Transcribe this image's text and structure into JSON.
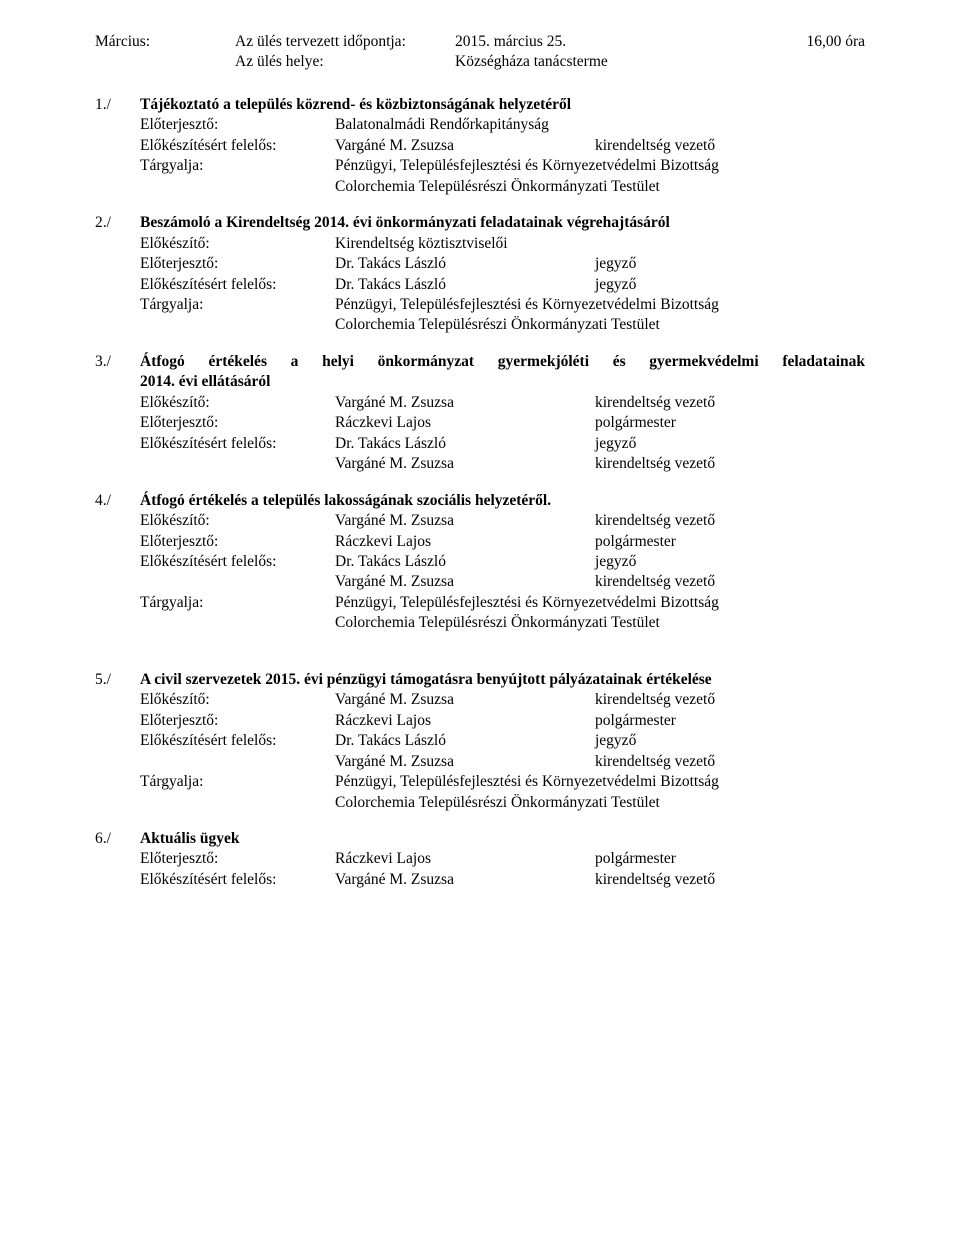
{
  "header": {
    "month": "Március:",
    "row1_label": "Az ülés tervezett időpontja:",
    "row1_value": "2015. március 25.",
    "row1_time": "16,00 óra",
    "row2_label": "Az ülés helye:",
    "row2_value": "Községháza tanácsterme"
  },
  "agenda": [
    {
      "num": "1./",
      "title": "Tájékoztató a település közrend- és közbiztonságának helyzetéről",
      "justify": false,
      "lines": [
        {
          "label": "Előterjesztő:",
          "value": "Balatonalmádi Rendőrkapitányság",
          "role": ""
        },
        {
          "label": "Előkészítésért felelős:",
          "value": "Vargáné M. Zsuzsa",
          "role": "kirendeltség vezető"
        },
        {
          "label": "Tárgyalja:",
          "full": "Pénzügyi, Településfejlesztési és Környezetvédelmi Bizottság"
        },
        {
          "indent": true,
          "full": "Colorchemia Településrészi Önkormányzati Testület"
        }
      ]
    },
    {
      "num": "2./",
      "title": "Beszámoló a Kirendeltség 2014. évi önkormányzati feladatainak végrehajtásáról",
      "justify": false,
      "lines": [
        {
          "label": "Előkészítő:",
          "value": "Kirendeltség köztisztviselői",
          "role": ""
        },
        {
          "label": "Előterjesztő:",
          "value": "Dr. Takács László",
          "role": "jegyző"
        },
        {
          "label": "Előkészítésért felelős:",
          "value": "Dr. Takács László",
          "role": "jegyző"
        },
        {
          "label": "Tárgyalja:",
          "full": "Pénzügyi, Településfejlesztési és Környezetvédelmi Bizottság"
        },
        {
          "indent": true,
          "full": "Colorchemia Településrészi Önkormányzati Testület"
        }
      ]
    },
    {
      "num": "3./",
      "title": "Átfogó értékelés a helyi önkormányzat gyermekjóléti és gyermekvédelmi feladatainak 2014. évi ellátásáról",
      "justify": true,
      "title2": "2014. évi ellátásáról",
      "title1": "Átfogó értékelés a helyi önkormányzat gyermekjóléti és gyermekvédelmi feladatainak",
      "lines": [
        {
          "label": "Előkészítő:",
          "value": "Vargáné M. Zsuzsa",
          "role": "kirendeltség vezető"
        },
        {
          "label": "Előterjesztő:",
          "value": "Ráczkevi Lajos",
          "role": "polgármester"
        },
        {
          "label": "Előkészítésért felelős:",
          "value": "Dr. Takács László",
          "role": "jegyző"
        },
        {
          "label": "",
          "value": "Vargáné M. Zsuzsa",
          "role": "kirendeltség vezető"
        }
      ]
    },
    {
      "num": "4./",
      "title": "Átfogó értékelés a település lakosságának szociális helyzetéről.",
      "justify": false,
      "lines": [
        {
          "label": "Előkészítő:",
          "value": "Vargáné M. Zsuzsa",
          "role": "kirendeltség vezető"
        },
        {
          "label": "Előterjesztő:",
          "value": "Ráczkevi Lajos",
          "role": "polgármester"
        },
        {
          "label": "Előkészítésért felelős:",
          "value": "Dr. Takács László",
          "role": "jegyző"
        },
        {
          "label": "",
          "value": "Vargáné M. Zsuzsa",
          "role": "kirendeltség vezető"
        },
        {
          "label": "Tárgyalja:",
          "full": "Pénzügyi, Településfejlesztési és Környezetvédelmi Bizottság"
        },
        {
          "indent": true,
          "full": "Colorchemia Településrészi Önkormányzati Testület"
        }
      ],
      "gap_after": true
    },
    {
      "num": "5./",
      "title": "A civil szervezetek 2015. évi pénzügyi támogatásra benyújtott pályázatainak értékelése",
      "justify": false,
      "lines": [
        {
          "label": "Előkészítő:",
          "value": "Vargáné M. Zsuzsa",
          "role": "kirendeltség vezető"
        },
        {
          "label": "Előterjesztő:",
          "value": "Ráczkevi Lajos",
          "role": "polgármester"
        },
        {
          "label": "Előkészítésért felelős:",
          "value": "Dr. Takács László",
          "role": "jegyző"
        },
        {
          "label": "",
          "value": "Vargáné M. Zsuzsa",
          "role": "kirendeltség vezető"
        },
        {
          "label": "Tárgyalja:",
          "full": "Pénzügyi, Településfejlesztési és Környezetvédelmi Bizottság"
        },
        {
          "indent": true,
          "full": "Colorchemia Településrészi Önkormányzati Testület"
        }
      ]
    },
    {
      "num": "6./",
      "title": "Aktuális ügyek",
      "justify": false,
      "lines": [
        {
          "label": "Előterjesztő:",
          "value": "Ráczkevi Lajos",
          "role": "polgármester"
        },
        {
          "label": "Előkészítésért felelős:",
          "value": "Vargáné M. Zsuzsa",
          "role": "kirendeltség vezető"
        }
      ]
    }
  ]
}
